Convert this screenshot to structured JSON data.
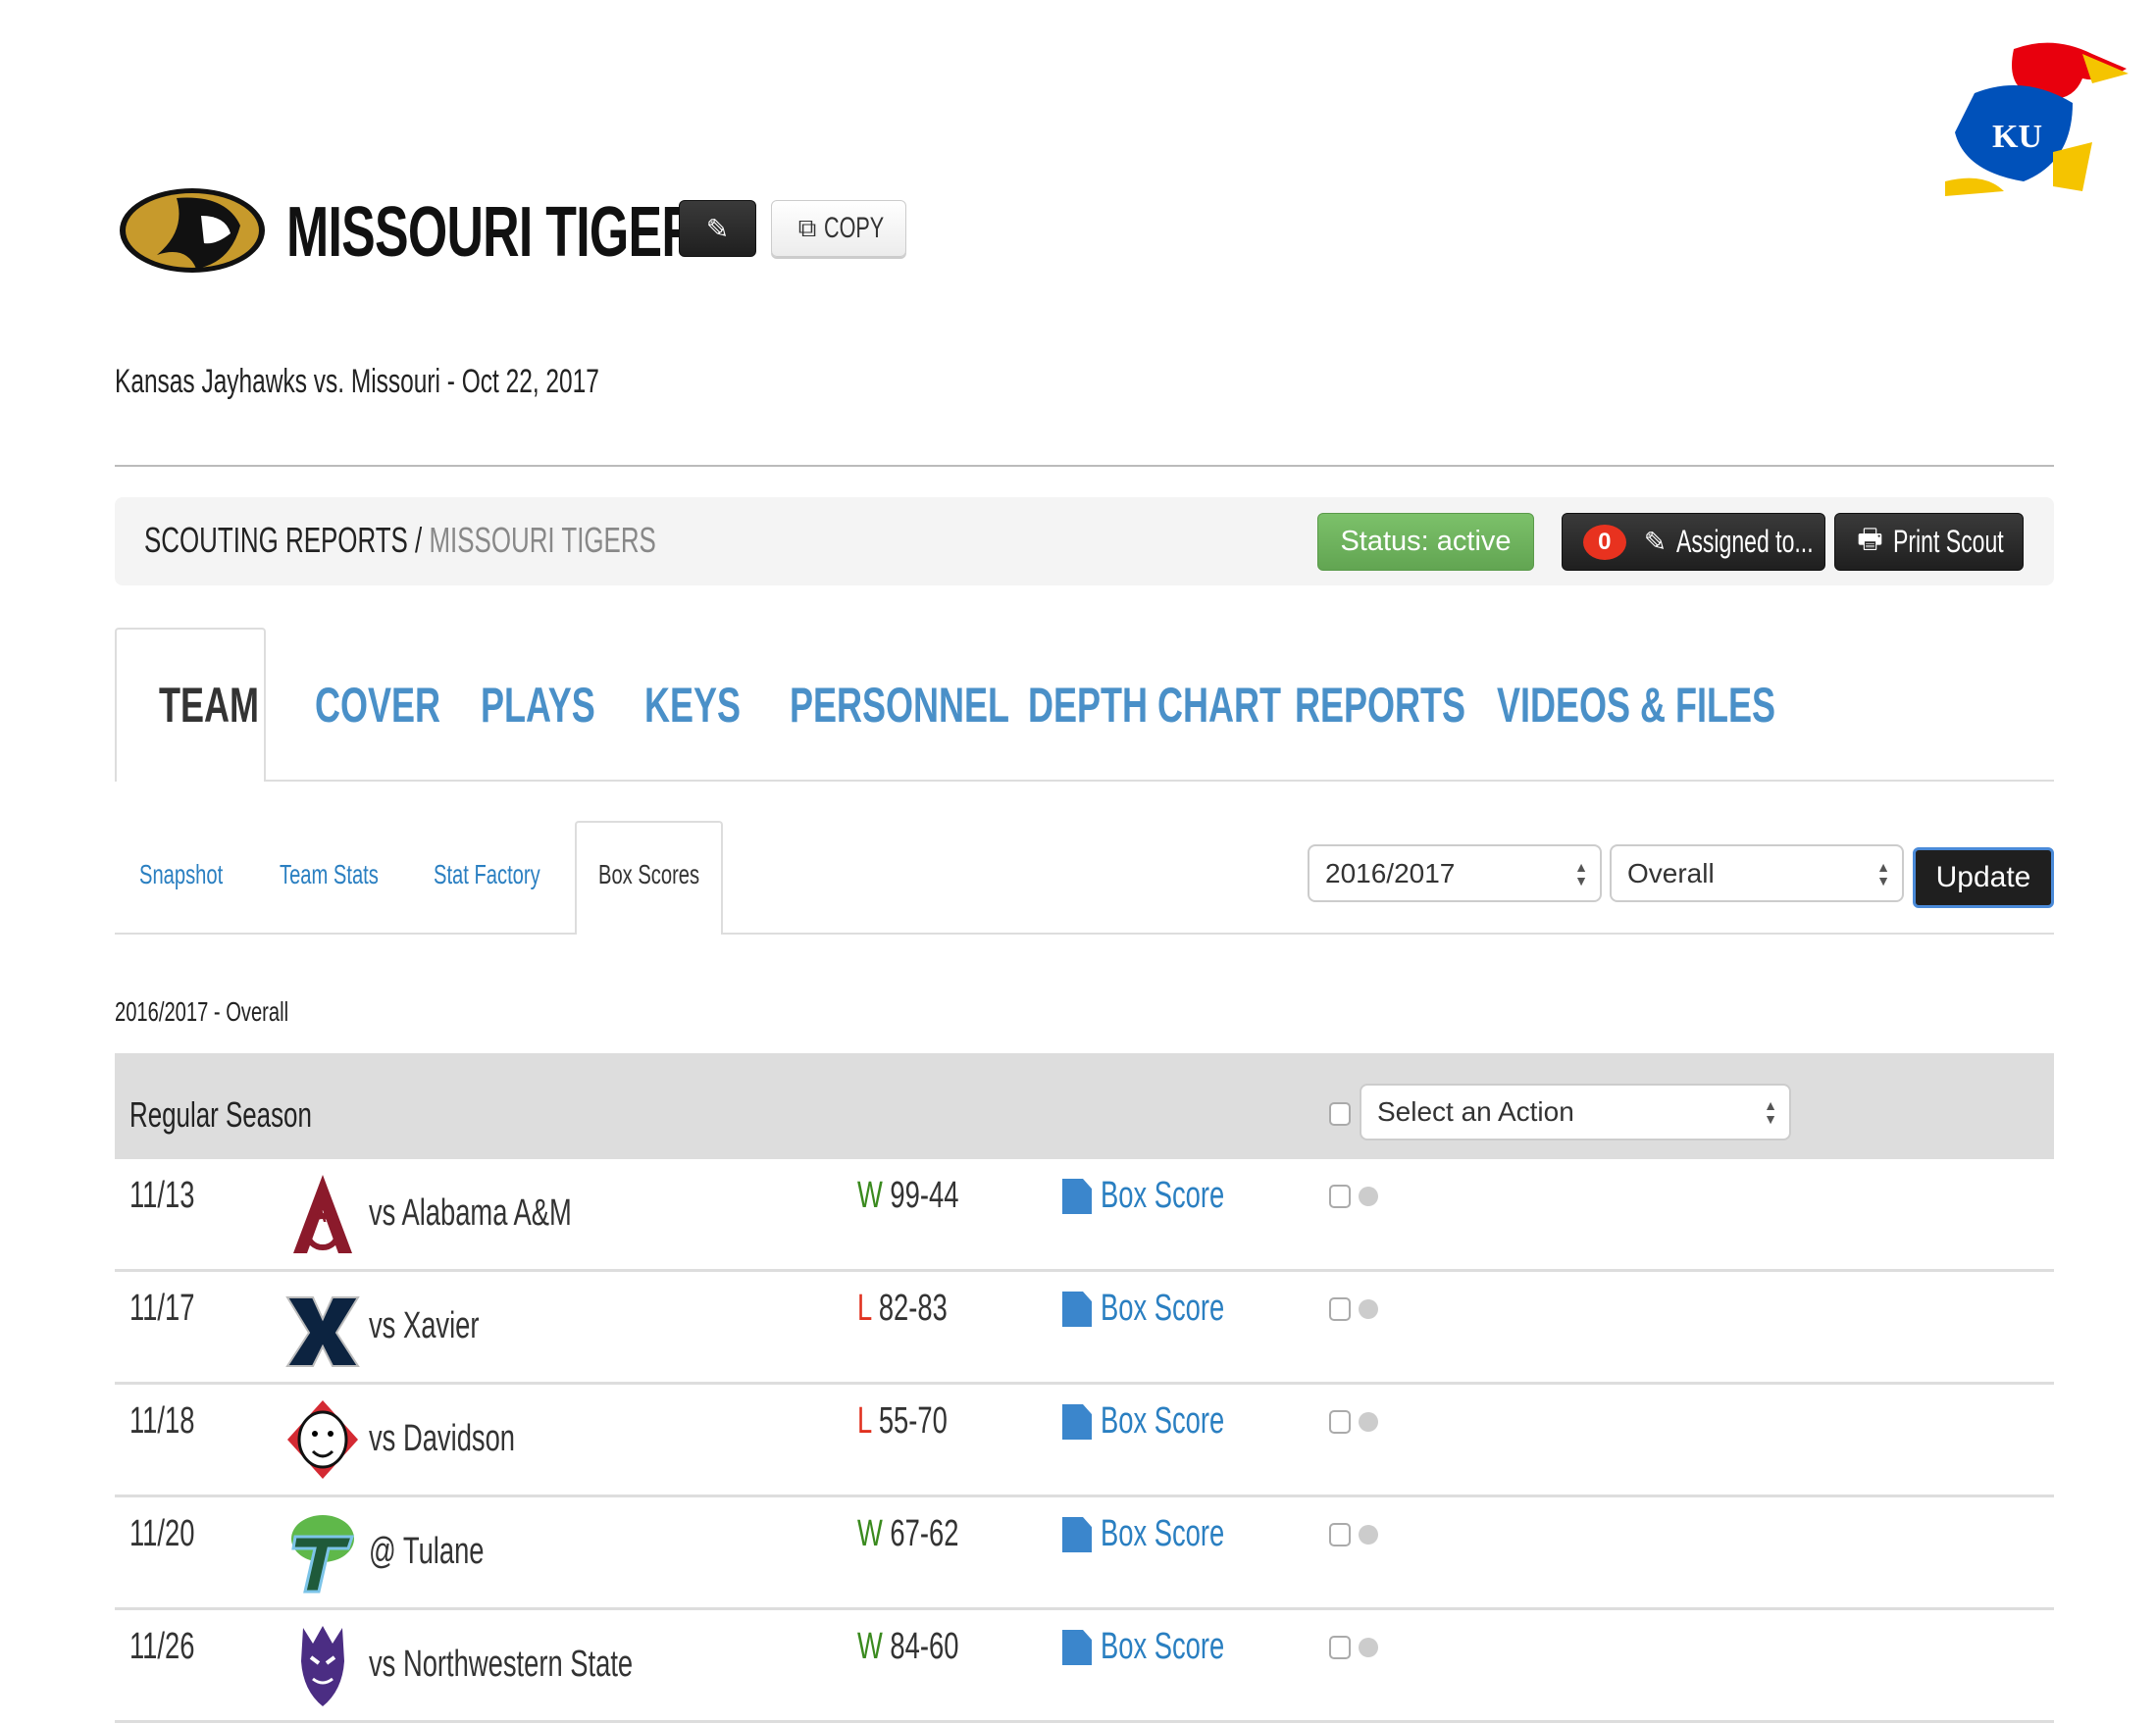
{
  "header": {
    "team_name": "MISSOURI TIGERS",
    "copy_label": "COPY",
    "subtitle": "Kansas Jayhawks vs. Missouri - Oct 22, 2017",
    "edit_icon": "pencil-square-icon",
    "copy_icon": "copy-icon"
  },
  "breadcrumb": {
    "root": "SCOUTING REPORTS",
    "separator": " / ",
    "current": "MISSOURI TIGERS"
  },
  "actions": {
    "status": "Status: active",
    "assigned_count": "0",
    "assigned": "Assigned to...",
    "print": "Print Scout",
    "status_color": "#6aab5a"
  },
  "tabs": [
    {
      "label": "TEAM",
      "active": true
    },
    {
      "label": "COVER"
    },
    {
      "label": "PLAYS"
    },
    {
      "label": "KEYS"
    },
    {
      "label": "PERSONNEL"
    },
    {
      "label": "DEPTH CHART"
    },
    {
      "label": "REPORTS"
    },
    {
      "label": "VIDEOS & FILES"
    }
  ],
  "subtabs": [
    {
      "label": "Snapshot"
    },
    {
      "label": "Team Stats"
    },
    {
      "label": "Stat Factory"
    },
    {
      "label": "Box Scores",
      "active": true
    }
  ],
  "filters": {
    "season": "2016/2017",
    "split": "Overall",
    "update": "Update"
  },
  "section_label": "2016/2017 - Overall",
  "table": {
    "group": "Regular Season",
    "action_select": "Select an Action",
    "rows": [
      {
        "date": "11/13",
        "opponent": "vs Alabama A&M",
        "result": "W",
        "score": "99-44",
        "link": "Box Score"
      },
      {
        "date": "11/17",
        "opponent": "vs Xavier",
        "result": "L",
        "score": "82-83",
        "link": "Box Score"
      },
      {
        "date": "11/18",
        "opponent": "vs Davidson",
        "result": "L",
        "score": "55-70",
        "link": "Box Score"
      },
      {
        "date": "11/20",
        "opponent": "@ Tulane",
        "result": "W",
        "score": "67-62",
        "link": "Box Score"
      },
      {
        "date": "11/26",
        "opponent": "vs Northwestern State",
        "result": "W",
        "score": "84-60",
        "link": "Box Score"
      }
    ]
  },
  "colors": {
    "win": "#3a8a1e",
    "loss": "#e0311f",
    "link": "#2a7fc1",
    "tab": "#4a90c8"
  }
}
